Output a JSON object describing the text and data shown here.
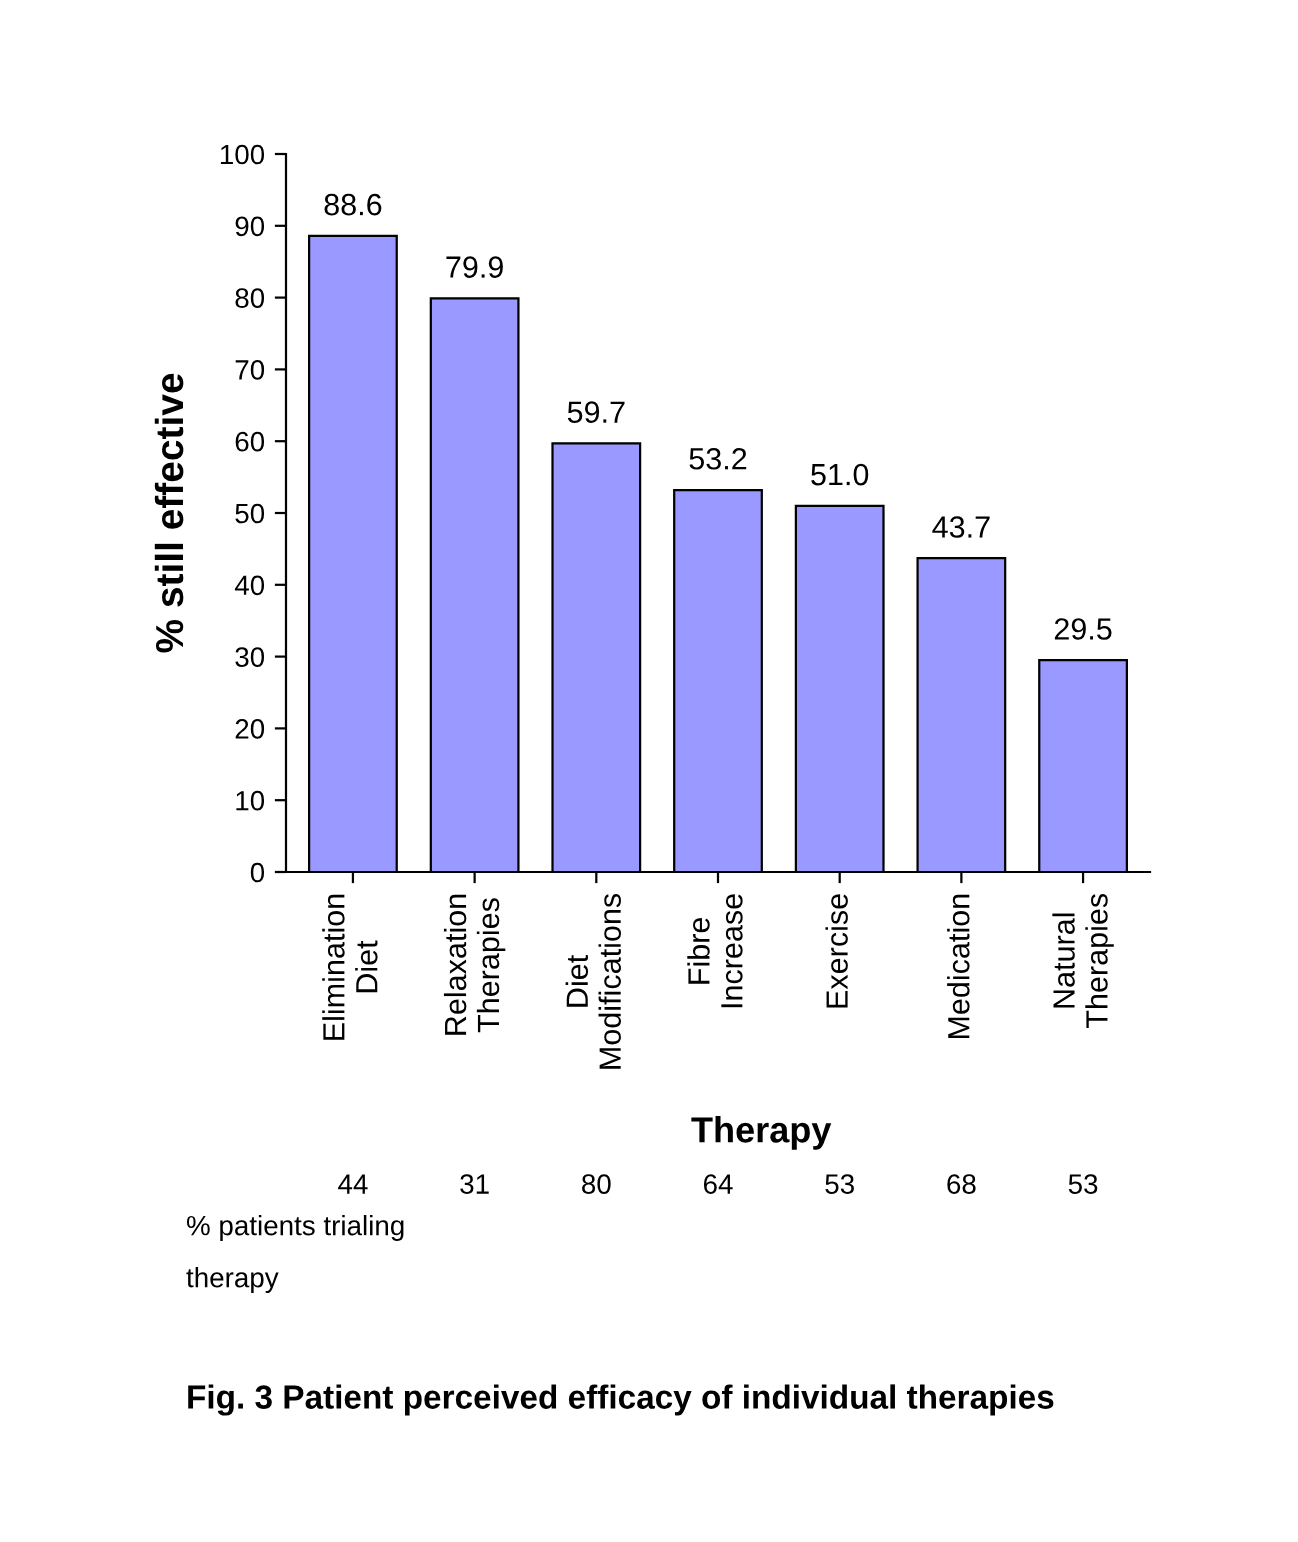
{
  "chart_data": {
    "type": "bar",
    "xlabel": "Therapy",
    "ylabel": "% still effective",
    "categories": [
      "Elimination Diet",
      "Relaxation Therapies",
      "Diet Modifications",
      "Fibre Increase",
      "Exercise",
      "Medication",
      "Natural Therapies"
    ],
    "values": [
      88.6,
      79.9,
      59.7,
      53.2,
      51.0,
      43.7,
      29.5
    ],
    "value_labels": [
      "88.6",
      "79.9",
      "59.7",
      "53.2",
      "51.0",
      "43.7",
      "29.5"
    ],
    "color": "#9999ff",
    "ylim": [
      0,
      100
    ],
    "yticks": [
      0,
      10,
      20,
      30,
      40,
      50,
      60,
      70,
      80,
      90,
      100
    ],
    "grid": false,
    "legend": false,
    "annotations": [
      "% patients trialing therapy",
      "44",
      "31",
      "80",
      "64",
      "53",
      "68",
      "53",
      "Fig. 3 Patient perceived efficacy of individual therapies"
    ]
  }
}
